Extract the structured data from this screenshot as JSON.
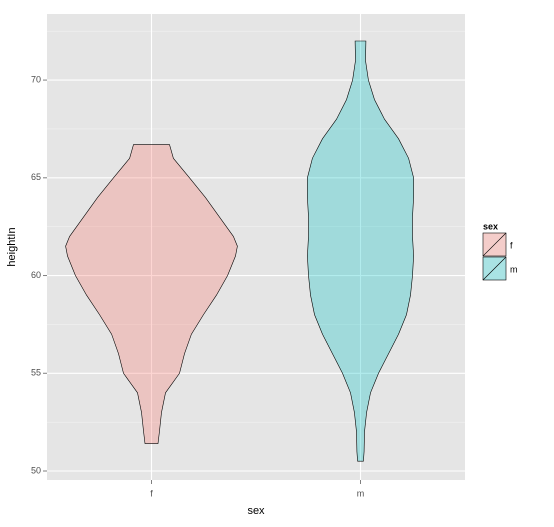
{
  "chart_data": {
    "type": "violin",
    "x_label": "sex",
    "y_label": "heightIn",
    "categories": [
      "f",
      "m"
    ],
    "series": [
      {
        "name": "f",
        "color": "#F8766D",
        "alpha": 0.3,
        "y": [
          51.4,
          52,
          53,
          54,
          55,
          56,
          57,
          58,
          59,
          60,
          61,
          61.5,
          62,
          63,
          64,
          65,
          66,
          66.7
        ],
        "widths": [
          0.031,
          0.038,
          0.048,
          0.067,
          0.134,
          0.158,
          0.191,
          0.249,
          0.311,
          0.364,
          0.402,
          0.411,
          0.392,
          0.325,
          0.258,
          0.182,
          0.105,
          0.086
        ]
      },
      {
        "name": "m",
        "color": "#00BFC4",
        "alpha": 0.3,
        "y": [
          50.5,
          51,
          52,
          53,
          54,
          55,
          56,
          57,
          58,
          59,
          60,
          61,
          62,
          63,
          64,
          65,
          66,
          67,
          68,
          69,
          70,
          71,
          72
        ],
        "widths": [
          0.014,
          0.017,
          0.019,
          0.029,
          0.048,
          0.086,
          0.134,
          0.182,
          0.22,
          0.239,
          0.249,
          0.254,
          0.249,
          0.249,
          0.254,
          0.254,
          0.23,
          0.182,
          0.115,
          0.067,
          0.038,
          0.024,
          0.026
        ]
      }
    ],
    "ylim": [
      49.54,
      73.38
    ],
    "yticks": [
      50,
      55,
      60,
      65,
      70
    ],
    "minor_yticks": [
      52.5,
      57.5,
      62.5,
      67.5,
      72.5
    ],
    "grid": true,
    "legend_title": "sex",
    "legend_position": "right"
  }
}
